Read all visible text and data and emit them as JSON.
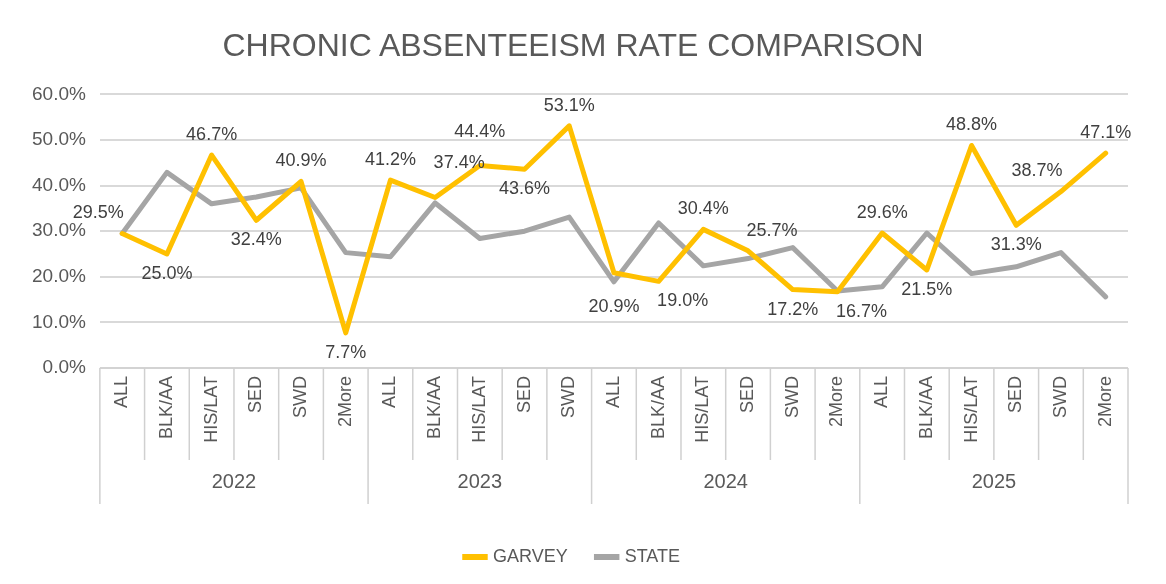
{
  "chart_data": {
    "type": "line",
    "title": "CHRONIC ABSENTEEISM RATE COMPARISON",
    "categories": [
      "ALL",
      "BLK/AA",
      "HIS/LAT",
      "SED",
      "SWD",
      "2More",
      "ALL",
      "BLK/AA",
      "HIS/LAT",
      "SED",
      "SWD",
      "ALL",
      "BLK/AA",
      "HIS/LAT",
      "SED",
      "SWD",
      "2More",
      "ALL",
      "BLK/AA",
      "HIS/LAT",
      "SED",
      "SWD",
      "2More"
    ],
    "annotations": [
      "2022",
      "2023",
      "2024",
      "2025"
    ],
    "series": [
      {
        "name": "GARVEY",
        "color": "#ffc000",
        "values": [
          29.5,
          25.0,
          46.7,
          32.4,
          40.9,
          7.7,
          41.2,
          37.4,
          44.4,
          43.6,
          53.1,
          20.9,
          19.0,
          30.4,
          25.7,
          17.2,
          16.7,
          29.6,
          21.5,
          48.8,
          31.3,
          38.7,
          47.1
        ],
        "value_labels": [
          "29.5%",
          "25.0%",
          "46.7%",
          "32.4%",
          "40.9%",
          "7.7%",
          "41.2%",
          "37.4%",
          "44.4%",
          "43.6%",
          "53.1%",
          "20.9%",
          "19.0%",
          "30.4%",
          "25.7%",
          "17.2%",
          "16.7%",
          "29.6%",
          "21.5%",
          "48.8%",
          "31.3%",
          "38.7%",
          "47.1%"
        ]
      },
      {
        "name": "STATE",
        "color": "#a5a5a5",
        "values": [
          29.5,
          42.9,
          36.0,
          37.5,
          39.5,
          25.3,
          24.4,
          36.2,
          28.4,
          30.0,
          33.1,
          18.9,
          31.8,
          22.4,
          24.0,
          26.4,
          16.9,
          17.8,
          29.6,
          20.7,
          22.2,
          25.3,
          15.6
        ]
      }
    ],
    "ylim": [
      0,
      60
    ],
    "yticks": [
      {
        "value": 0,
        "label": "0.0%"
      },
      {
        "value": 10,
        "label": "10.0%"
      },
      {
        "value": 20,
        "label": "20.0%"
      },
      {
        "value": 30,
        "label": "30.0%"
      },
      {
        "value": 40,
        "label": "40.0%"
      },
      {
        "value": 50,
        "label": "50.0%"
      },
      {
        "value": 60,
        "label": "60.0%"
      }
    ],
    "grid": "y",
    "legend": "bottom",
    "marker": "none",
    "line_style": "solid"
  }
}
